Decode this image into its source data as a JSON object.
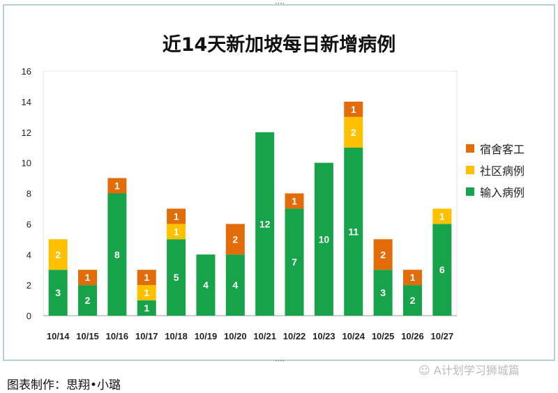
{
  "chart_data": {
    "type": "bar",
    "stacked": true,
    "title": "近14天新加坡每日新增病例",
    "categories": [
      "10/14",
      "10/15",
      "10/16",
      "10/17",
      "10/18",
      "10/19",
      "10/20",
      "10/21",
      "10/22",
      "10/23",
      "10/24",
      "10/25",
      "10/26",
      "10/27"
    ],
    "series": [
      {
        "name": "输入病例",
        "color": "#17a34a",
        "values": [
          3,
          2,
          8,
          1,
          5,
          4,
          4,
          12,
          7,
          10,
          11,
          3,
          2,
          6
        ]
      },
      {
        "name": "社区病例",
        "color": "#ffc000",
        "values": [
          2,
          0,
          0,
          1,
          1,
          0,
          0,
          0,
          0,
          0,
          2,
          0,
          0,
          1
        ]
      },
      {
        "name": "宿舍客工",
        "color": "#e36c0a",
        "values": [
          0,
          1,
          1,
          1,
          1,
          0,
          2,
          0,
          1,
          0,
          1,
          2,
          1,
          0
        ]
      }
    ],
    "legend_order": [
      "宿舍客工",
      "社区病例",
      "输入病例"
    ],
    "ylim": [
      0,
      16
    ],
    "yticks": [
      0,
      2,
      4,
      6,
      8,
      10,
      12,
      14,
      16
    ],
    "legend_position": "right",
    "grid": false
  },
  "footer": "图表制作：思翔•小璐",
  "watermark": "A计划学习狮城篇"
}
